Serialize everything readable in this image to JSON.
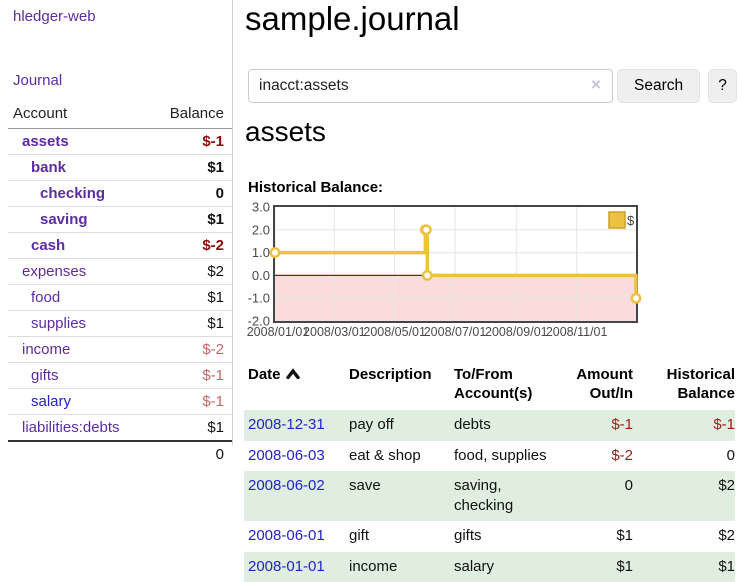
{
  "app": {
    "brand": "hledger-web"
  },
  "sidebar": {
    "journal_link": "Journal",
    "table": {
      "account_header": "Account",
      "balance_header": "Balance",
      "rows": [
        {
          "account": "assets",
          "depth": 1,
          "balance": "$-1",
          "bold": true,
          "balance_color": "dark-red",
          "link_color": "purple"
        },
        {
          "account": "bank",
          "depth": 2,
          "balance": "$1",
          "bold": true,
          "balance_color": "black",
          "link_color": "purple"
        },
        {
          "account": "checking",
          "depth": 3,
          "balance": "0",
          "bold": true,
          "balance_color": "black",
          "link_color": "purple"
        },
        {
          "account": "saving",
          "depth": 3,
          "balance": "$1",
          "bold": true,
          "balance_color": "black",
          "link_color": "purple"
        },
        {
          "account": "cash",
          "depth": 2,
          "balance": "$-2",
          "bold": true,
          "balance_color": "dark-red",
          "link_color": "purple"
        },
        {
          "account": "expenses",
          "depth": 1,
          "balance": "$2",
          "bold": false,
          "balance_color": "black",
          "link_color": "purple"
        },
        {
          "account": "food",
          "depth": 2,
          "balance": "$1",
          "bold": false,
          "balance_color": "black",
          "link_color": "purple"
        },
        {
          "account": "supplies",
          "depth": 2,
          "balance": "$1",
          "bold": false,
          "balance_color": "black",
          "link_color": "purple"
        },
        {
          "account": "income",
          "depth": 1,
          "balance": "$-2",
          "bold": false,
          "balance_color": "rose",
          "link_color": "purple"
        },
        {
          "account": "gifts",
          "depth": 2,
          "balance": "$-1",
          "bold": false,
          "balance_color": "rose",
          "link_color": "purple"
        },
        {
          "account": "salary",
          "depth": 2,
          "balance": "$-1",
          "bold": false,
          "balance_color": "rose",
          "link_color": "blue"
        },
        {
          "account": "liabilities:debts",
          "depth": 1,
          "balance": "$1",
          "bold": false,
          "balance_color": "black",
          "link_color": "purple"
        }
      ],
      "total": "0"
    }
  },
  "main": {
    "title": "sample.journal",
    "search": {
      "value": "inacct:assets",
      "clear_icon": "×",
      "button_label": "Search",
      "help_label": "?"
    },
    "account_heading": "assets",
    "chart_heading": "Historical Balance:"
  },
  "chart_data": {
    "type": "area",
    "style": "step-line-with-points",
    "title": "Historical Balance of assets",
    "series": [
      {
        "name": "$",
        "color": "#edc240",
        "points": [
          [
            "2008-01-01",
            1
          ],
          [
            "2008-06-01",
            2
          ],
          [
            "2008-06-02",
            2
          ],
          [
            "2008-06-03",
            0
          ],
          [
            "2008-12-31",
            -1
          ]
        ]
      }
    ],
    "x_domain": [
      "2008-01-01",
      "2008-12-31"
    ],
    "y_domain": [
      -2,
      3
    ],
    "y_ticks": [
      {
        "value": 3,
        "label": "3.0"
      },
      {
        "value": 2,
        "label": "2.0"
      },
      {
        "value": 1,
        "label": "1.0"
      },
      {
        "value": 0,
        "label": "0.0"
      },
      {
        "value": -1,
        "label": "-1.0"
      },
      {
        "value": -2,
        "label": "-2.0"
      }
    ],
    "x_ticks": [
      {
        "date": "2008-01-01",
        "label": "2008/01/01"
      },
      {
        "date": "2008-03-01",
        "label": "2008/03/01"
      },
      {
        "date": "2008-05-01",
        "label": "2008/05/01"
      },
      {
        "date": "2008-07-01",
        "label": "2008/07/01"
      },
      {
        "date": "2008-09-01",
        "label": "2008/09/01"
      },
      {
        "date": "2008-11-01",
        "label": "2008/11/01"
      }
    ],
    "legend": {
      "label": "$",
      "position": "top-right"
    },
    "grid": true,
    "negative_fill": "#fadcdc",
    "zero_line_color": "#991111"
  },
  "register": {
    "headers": {
      "date": "Date",
      "description": "Description",
      "accounts": "To/From Account(s)",
      "amount": "Amount Out/In",
      "balance": "Historical Balance"
    },
    "rows": [
      {
        "date": "2008-12-31",
        "description": "pay off",
        "accounts": "debts",
        "amount": "$-1",
        "amount_neg": true,
        "balance": "$-1",
        "balance_neg": true
      },
      {
        "date": "2008-06-03",
        "description": "eat & shop",
        "accounts": "food, supplies",
        "amount": "$-2",
        "amount_neg": true,
        "balance": "0",
        "balance_neg": false
      },
      {
        "date": "2008-06-02",
        "description": "save",
        "accounts": "saving, checking",
        "amount": "0",
        "amount_neg": false,
        "balance": "$2",
        "balance_neg": false
      },
      {
        "date": "2008-06-01",
        "description": "gift",
        "accounts": "gifts",
        "amount": "$1",
        "amount_neg": false,
        "balance": "$2",
        "balance_neg": false
      },
      {
        "date": "2008-01-01",
        "description": "income",
        "accounts": "salary",
        "amount": "$1",
        "amount_neg": false,
        "balance": "$1",
        "balance_neg": false
      }
    ]
  },
  "colors": {
    "link_purple": "#5d2ca0",
    "link_blue": "#2222cc",
    "negative_dark_red": "#8e0b0b",
    "negative_rose": "#c06868",
    "row_stripe_green": "#dfeede",
    "chart_gold": "#edc240"
  }
}
